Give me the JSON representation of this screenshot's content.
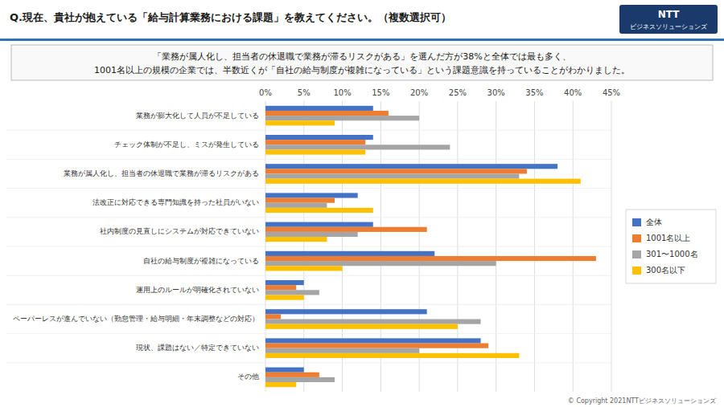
{
  "chart_data": {
    "type": "bar",
    "orientation": "horizontal",
    "title": "Q.現在、貴社が抱えている「給与計算業務における課題」を教えてください。（複数選択可）",
    "subtitle": [
      "「業務が属人化し、担当者の休退職で業務が滞るリスクがある」を選んだ方が38%と全体では最も多く、",
      "1001名以上の規模の企業では、半数近くが「自社の給与制度が複雑になっている」という課題意識を持っていることがわかりました。"
    ],
    "categories": [
      "業務が膨大化して人員が不足している",
      "チェック体制が不足し、ミスが発生している",
      "業務が属人化し、担当者の休退職で業務が滞るリスクがある",
      "法改正に対応できる専門知識を持った社員がいない",
      "社内制度の見直しにシステムが対応できていない",
      "自社の給与制度が複雑になっている",
      "運用上のルールが明確化されていない",
      "ペーパーレスが進んでいない（勤怠管理・給与明細・年末調整などの対応）",
      "現状、課題はない／特定できていない",
      "その他"
    ],
    "series": [
      {
        "name": "全体",
        "color": "#4472c4",
        "values": [
          14,
          14,
          38,
          12,
          14,
          22,
          5,
          21,
          28,
          5
        ]
      },
      {
        "name": "1001名以上",
        "color": "#ed7d31",
        "values": [
          16,
          13,
          34,
          9,
          21,
          43,
          4,
          2,
          29,
          7
        ]
      },
      {
        "name": "301〜1000名",
        "color": "#a5a5a5",
        "values": [
          20,
          24,
          33,
          8,
          12,
          30,
          7,
          28,
          20,
          9
        ]
      },
      {
        "name": "300名以下",
        "color": "#ffc000",
        "values": [
          9,
          13,
          41,
          14,
          8,
          10,
          5,
          25,
          33,
          4
        ]
      }
    ],
    "xlim": [
      0,
      45
    ],
    "xticks": [
      {
        "value": 0,
        "label": "0%"
      },
      {
        "value": 5,
        "label": "5%"
      },
      {
        "value": 10,
        "label": "10%"
      },
      {
        "value": 15,
        "label": "15%"
      },
      {
        "value": 20,
        "label": "20%"
      },
      {
        "value": 25,
        "label": "25%"
      },
      {
        "value": 30,
        "label": "30%"
      },
      {
        "value": 35,
        "label": "35%"
      },
      {
        "value": 40,
        "label": "40%"
      },
      {
        "value": 45,
        "label": "45%"
      }
    ],
    "grid": true,
    "legend": "right",
    "annotations": [
      "NTT",
      "ビジネスソリューションズ",
      "© Copyright 2021NTTビジネスソリューションズ"
    ]
  }
}
